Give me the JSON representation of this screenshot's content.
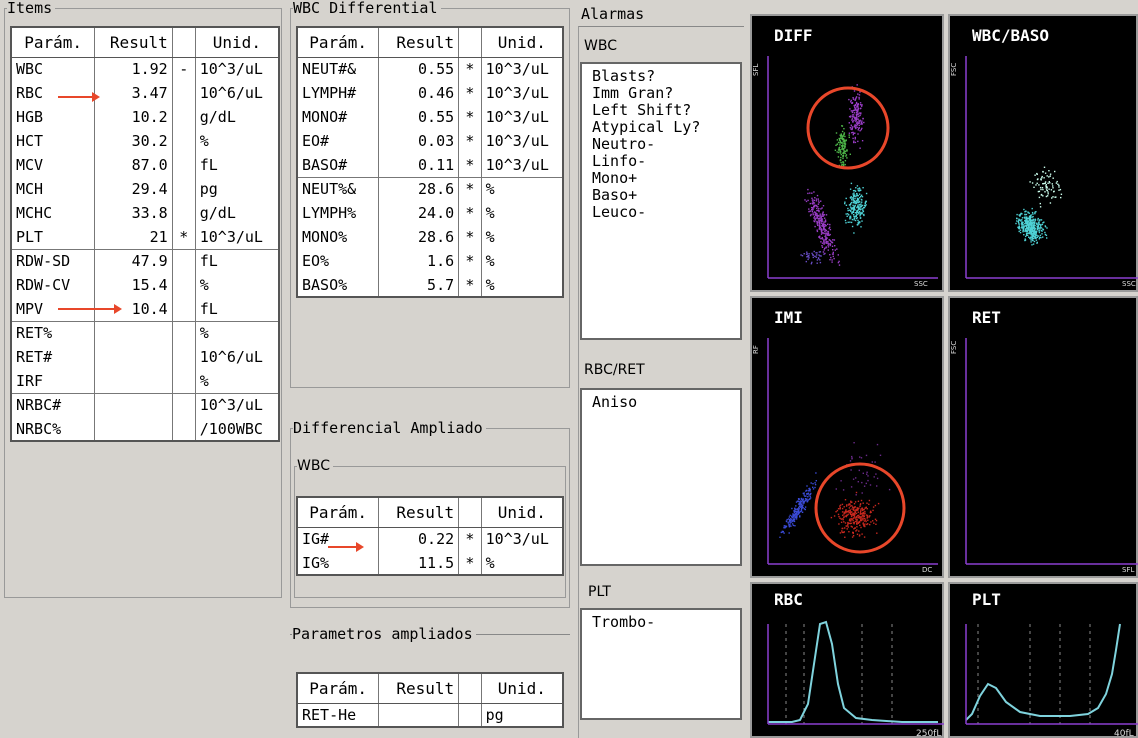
{
  "items": {
    "title": "Items",
    "headers": [
      "Parám.",
      "Result",
      "",
      "Unid."
    ],
    "rows": [
      {
        "p": "WBC",
        "r": "1.92",
        "f": "-",
        "u": "10^3/uL"
      },
      {
        "p": "RBC",
        "r": "3.47",
        "f": "",
        "u": "10^6/uL"
      },
      {
        "p": "HGB",
        "r": "10.2",
        "f": "",
        "u": "g/dL"
      },
      {
        "p": "HCT",
        "r": "30.2",
        "f": "",
        "u": "%"
      },
      {
        "p": "MCV",
        "r": "87.0",
        "f": "",
        "u": "fL"
      },
      {
        "p": "MCH",
        "r": "29.4",
        "f": "",
        "u": "pg"
      },
      {
        "p": "MCHC",
        "r": "33.8",
        "f": "",
        "u": "g/dL"
      },
      {
        "p": "PLT",
        "r": "21",
        "f": "*",
        "u": "10^3/uL"
      },
      {
        "p": "RDW-SD",
        "r": "47.9",
        "f": "",
        "u": "fL"
      },
      {
        "p": "RDW-CV",
        "r": "15.4",
        "f": "",
        "u": "%"
      },
      {
        "p": "MPV",
        "r": "10.4",
        "f": "",
        "u": "fL"
      },
      {
        "p": "RET%",
        "r": "",
        "f": "",
        "u": "%"
      },
      {
        "p": "RET#",
        "r": "",
        "f": "",
        "u": "10^6/uL"
      },
      {
        "p": "IRF",
        "r": "",
        "f": "",
        "u": "%"
      },
      {
        "p": "NRBC#",
        "r": "",
        "f": "",
        "u": "10^3/uL"
      },
      {
        "p": "NRBC%",
        "r": "",
        "f": "",
        "u": "/100WBC"
      }
    ]
  },
  "wbc_diff": {
    "title": "WBC Differential",
    "headers": [
      "Parám.",
      "Result",
      "",
      "Unid."
    ],
    "rows": [
      {
        "p": "NEUT#&",
        "r": "0.55",
        "f": "*",
        "u": "10^3/uL"
      },
      {
        "p": "LYMPH#",
        "r": "0.46",
        "f": "*",
        "u": "10^3/uL"
      },
      {
        "p": "MONO#",
        "r": "0.55",
        "f": "*",
        "u": "10^3/uL"
      },
      {
        "p": "EO#",
        "r": "0.03",
        "f": "*",
        "u": "10^3/uL"
      },
      {
        "p": "BASO#",
        "r": "0.11",
        "f": "*",
        "u": "10^3/uL"
      },
      {
        "p": "NEUT%&",
        "r": "28.6",
        "f": "*",
        "u": "%"
      },
      {
        "p": "LYMPH%",
        "r": "24.0",
        "f": "*",
        "u": "%"
      },
      {
        "p": "MONO%",
        "r": "28.6",
        "f": "*",
        "u": "%"
      },
      {
        "p": "EO%",
        "r": "1.6",
        "f": "*",
        "u": "%"
      },
      {
        "p": "BASO%",
        "r": "5.7",
        "f": "*",
        "u": "%"
      }
    ]
  },
  "diff_ampliado": {
    "title": "Differencial Ampliado",
    "sub_title": "WBC",
    "headers": [
      "Parám.",
      "Result",
      "",
      "Unid."
    ],
    "rows": [
      {
        "p": "IG#",
        "r": "0.22",
        "f": "*",
        "u": "10^3/uL"
      },
      {
        "p": "IG%",
        "r": "11.5",
        "f": "*",
        "u": "%"
      }
    ]
  },
  "param_ampliados": {
    "title": "Parametros ampliados",
    "headers": [
      "Parám.",
      "Result",
      "",
      "Unid."
    ],
    "rows": [
      {
        "p": "RET-He",
        "r": "",
        "f": "",
        "u": "pg"
      }
    ]
  },
  "alarmas": {
    "title": "Alarmas",
    "wbc_label": "WBC",
    "wbc_flags": [
      "Blasts?",
      "Imm Gran?",
      "Left Shift?",
      "Atypical Ly?",
      "Neutro-",
      "Linfo-",
      "Mono+",
      "Baso+",
      "Leuco-"
    ],
    "rbc_label": "RBC/RET",
    "rbc_flags": [
      "Aniso"
    ],
    "plt_label": "PLT",
    "plt_flags": [
      "Trombo-"
    ]
  },
  "plots": {
    "diff": {
      "title": "DIFF",
      "y_axis": "SFL",
      "x_axis": "SSC"
    },
    "wbc_baso": {
      "title": "WBC/BASO",
      "y_axis": "FSC",
      "x_axis": "SSC"
    },
    "imi": {
      "title": "IMI",
      "y_axis": "RF",
      "x_axis": "DC"
    },
    "ret": {
      "title": "RET",
      "y_axis": "FSC",
      "x_axis": "SFL"
    },
    "rbc": {
      "title": "RBC",
      "x_max": "250fL"
    },
    "plt": {
      "title": "PLT",
      "x_max": "40fL"
    }
  },
  "colors": {
    "annotation": "#e8472a",
    "trace": "#7fd3dd",
    "axis": "#8a3fd0"
  }
}
